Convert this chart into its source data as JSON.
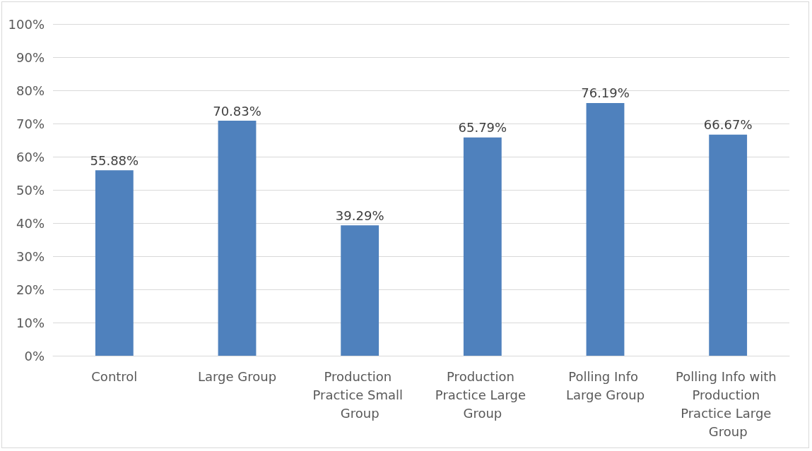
{
  "chart_data": {
    "type": "bar",
    "categories": [
      "Control",
      "Large Group",
      "Production Practice Small Group",
      "Production Practice Large Group",
      "Polling Info Large Group",
      "Polling Info with Production Practice Large Group"
    ],
    "values": [
      55.88,
      70.83,
      39.29,
      65.79,
      76.19,
      66.67
    ],
    "value_labels": [
      "55.88%",
      "70.83%",
      "39.29%",
      "65.79%",
      "76.19%",
      "66.67%"
    ],
    "color": "#4f81bd",
    "ylim": [
      0,
      100
    ],
    "yticks": [
      {
        "value": 0,
        "label": "0%"
      },
      {
        "value": 10,
        "label": "10%"
      },
      {
        "value": 20,
        "label": "20%"
      },
      {
        "value": 30,
        "label": "30%"
      },
      {
        "value": 40,
        "label": "40%"
      },
      {
        "value": 50,
        "label": "50%"
      },
      {
        "value": 60,
        "label": "60%"
      },
      {
        "value": 70,
        "label": "70%"
      },
      {
        "value": 80,
        "label": "80%"
      },
      {
        "value": 90,
        "label": "90%"
      },
      {
        "value": 100,
        "label": "100%"
      }
    ],
    "grid": "y"
  }
}
